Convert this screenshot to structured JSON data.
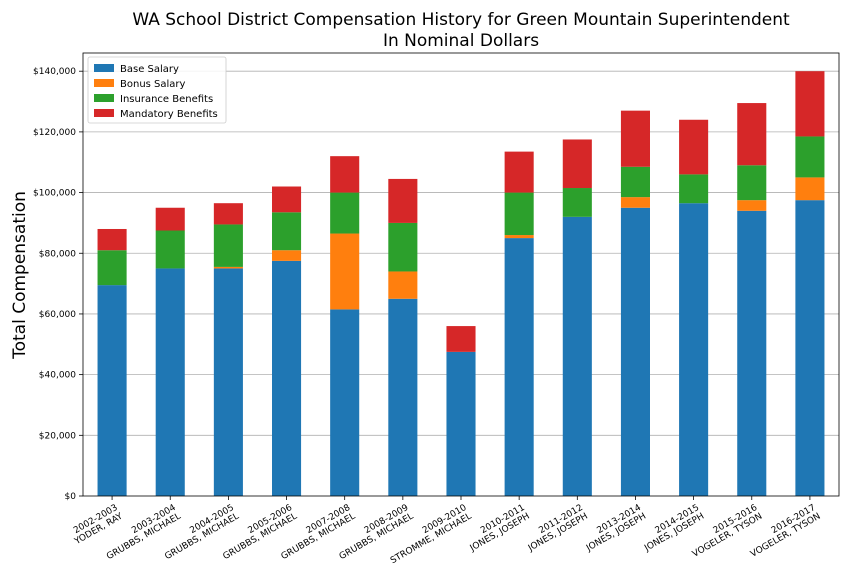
{
  "chart_data": {
    "type": "bar",
    "stacked": true,
    "title": "WA School District Compensation History for Green Mountain Superintendent",
    "subtitle": "In Nominal Dollars",
    "xlabel": "",
    "ylabel": "Total Compensation",
    "ylim": [
      0,
      146000
    ],
    "yticks": [
      0,
      20000,
      40000,
      60000,
      80000,
      100000,
      120000,
      140000
    ],
    "ytick_labels": [
      "$0",
      "$20,000",
      "$40,000",
      "$60,000",
      "$80,000",
      "$100,000",
      "$120,000",
      "$140,000"
    ],
    "grid": "y",
    "legend_position": "top-left",
    "categories": [
      [
        "2002-2003",
        "YODER, RAY"
      ],
      [
        "2003-2004",
        "GRUBBS, MICHAEL"
      ],
      [
        "2004-2005",
        "GRUBBS, MICHAEL"
      ],
      [
        "2005-2006",
        "GRUBBS, MICHAEL"
      ],
      [
        "2007-2008",
        "GRUBBS, MICHAEL"
      ],
      [
        "2008-2009",
        "GRUBBS, MICHAEL"
      ],
      [
        "2009-2010",
        "STROMME, MICHAEL"
      ],
      [
        "2010-2011",
        "JONES, JOSEPH"
      ],
      [
        "2011-2012",
        "JONES, JOSEPH"
      ],
      [
        "2013-2014",
        "JONES, JOSEPH"
      ],
      [
        "2014-2015",
        "JONES, JOSEPH"
      ],
      [
        "2015-2016",
        "VOGELER, TYSON"
      ],
      [
        "2016-2017",
        "VOGELER, TYSON"
      ]
    ],
    "series": [
      {
        "name": "Base Salary",
        "color": "#1f77b4",
        "values": [
          69500,
          75000,
          75000,
          77500,
          61500,
          65000,
          47500,
          85000,
          92000,
          95000,
          96500,
          94000,
          97500
        ]
      },
      {
        "name": "Bonus Salary",
        "color": "#ff7f0e",
        "values": [
          0,
          0,
          500,
          3500,
          25000,
          9000,
          0,
          1000,
          0,
          3500,
          0,
          3500,
          7500
        ]
      },
      {
        "name": "Insurance Benefits",
        "color": "#2ca02c",
        "values": [
          11500,
          12500,
          14000,
          12500,
          13500,
          16000,
          0,
          14000,
          9500,
          10000,
          9500,
          11500,
          13500
        ]
      },
      {
        "name": "Mandatory Benefits",
        "color": "#d62728",
        "values": [
          7000,
          7500,
          7000,
          8500,
          12000,
          14500,
          8500,
          13500,
          16000,
          18500,
          18000,
          20500,
          21500
        ]
      }
    ]
  }
}
